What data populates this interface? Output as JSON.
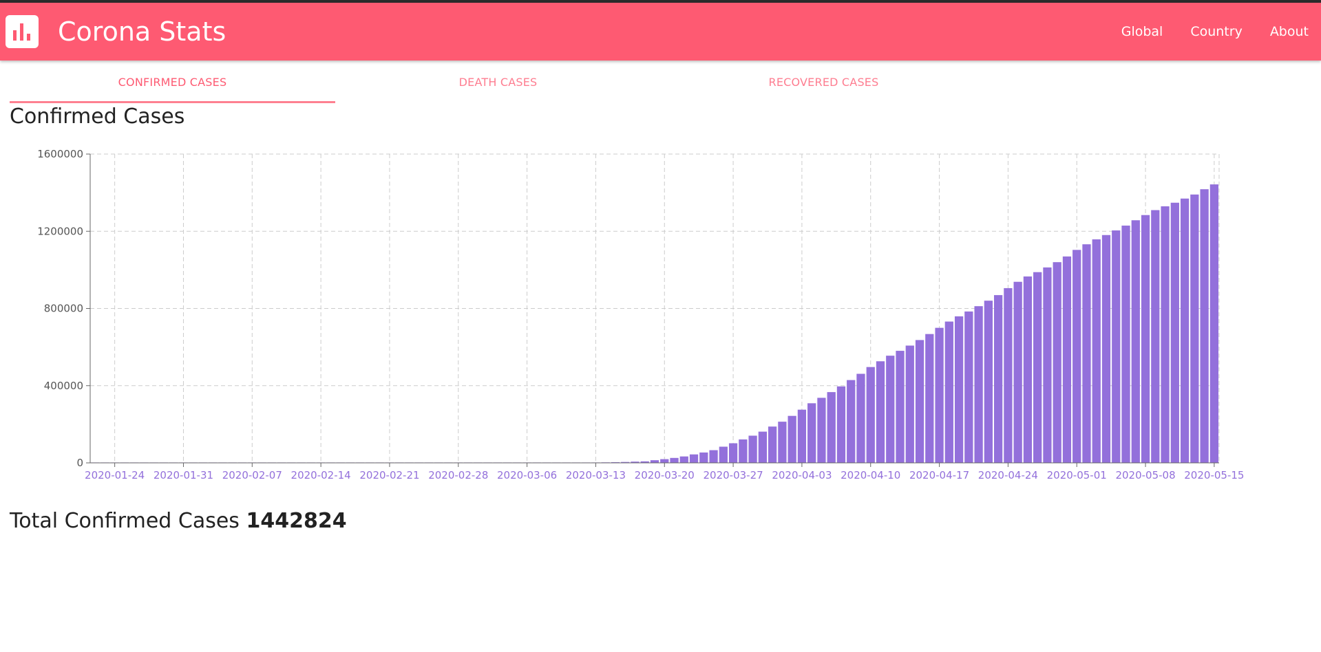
{
  "app": {
    "title": "Corona Stats",
    "logo_icon": "bar-chart-icon"
  },
  "nav": [
    {
      "label": "Global"
    },
    {
      "label": "Country"
    },
    {
      "label": "About"
    }
  ],
  "tabs": [
    {
      "label": "CONFIRMED CASES",
      "active": true
    },
    {
      "label": "DEATH CASES",
      "active": false
    },
    {
      "label": "RECOVERED CASES",
      "active": false
    }
  ],
  "heading": "Confirmed Cases",
  "total": {
    "label": "Total Confirmed Cases",
    "value": "1442824"
  },
  "colors": {
    "appbar": "#fe5a72",
    "tab_active": "#fe5a72",
    "tab_inactive": "#fe7d90",
    "bar": "#9370db",
    "tick_x": "#9370db",
    "grid": "#cccccc"
  },
  "chart_data": {
    "type": "bar",
    "title": "",
    "xlabel": "",
    "ylabel": "",
    "ylim": [
      0,
      1600000
    ],
    "yticks": [
      0,
      400000,
      800000,
      1200000,
      1600000
    ],
    "grid": true,
    "xtick_labels": [
      "2020-01-24",
      "2020-01-31",
      "2020-02-07",
      "2020-02-14",
      "2020-02-21",
      "2020-02-28",
      "2020-03-06",
      "2020-03-13",
      "2020-03-20",
      "2020-03-27",
      "2020-04-03",
      "2020-04-10",
      "2020-04-17",
      "2020-04-24",
      "2020-05-01",
      "2020-05-08",
      "2020-05-15"
    ],
    "categories": [
      "2020-01-22",
      "2020-01-23",
      "2020-01-24",
      "2020-01-25",
      "2020-01-26",
      "2020-01-27",
      "2020-01-28",
      "2020-01-29",
      "2020-01-30",
      "2020-01-31",
      "2020-02-01",
      "2020-02-02",
      "2020-02-03",
      "2020-02-04",
      "2020-02-05",
      "2020-02-06",
      "2020-02-07",
      "2020-02-08",
      "2020-02-09",
      "2020-02-10",
      "2020-02-11",
      "2020-02-12",
      "2020-02-13",
      "2020-02-14",
      "2020-02-15",
      "2020-02-16",
      "2020-02-17",
      "2020-02-18",
      "2020-02-19",
      "2020-02-20",
      "2020-02-21",
      "2020-02-22",
      "2020-02-23",
      "2020-02-24",
      "2020-02-25",
      "2020-02-26",
      "2020-02-27",
      "2020-02-28",
      "2020-02-29",
      "2020-03-01",
      "2020-03-02",
      "2020-03-03",
      "2020-03-04",
      "2020-03-05",
      "2020-03-06",
      "2020-03-07",
      "2020-03-08",
      "2020-03-09",
      "2020-03-10",
      "2020-03-11",
      "2020-03-12",
      "2020-03-13",
      "2020-03-14",
      "2020-03-15",
      "2020-03-16",
      "2020-03-17",
      "2020-03-18",
      "2020-03-19",
      "2020-03-20",
      "2020-03-21",
      "2020-03-22",
      "2020-03-23",
      "2020-03-24",
      "2020-03-25",
      "2020-03-26",
      "2020-03-27",
      "2020-03-28",
      "2020-03-29",
      "2020-03-30",
      "2020-03-31",
      "2020-04-01",
      "2020-04-02",
      "2020-04-03",
      "2020-04-04",
      "2020-04-05",
      "2020-04-06",
      "2020-04-07",
      "2020-04-08",
      "2020-04-09",
      "2020-04-10",
      "2020-04-11",
      "2020-04-12",
      "2020-04-13",
      "2020-04-14",
      "2020-04-15",
      "2020-04-16",
      "2020-04-17",
      "2020-04-18",
      "2020-04-19",
      "2020-04-20",
      "2020-04-21",
      "2020-04-22",
      "2020-04-23",
      "2020-04-24",
      "2020-04-25",
      "2020-04-26",
      "2020-04-27",
      "2020-04-28",
      "2020-04-29",
      "2020-04-30",
      "2020-05-01",
      "2020-05-02",
      "2020-05-03",
      "2020-05-04",
      "2020-05-05",
      "2020-05-06",
      "2020-05-07",
      "2020-05-08",
      "2020-05-09",
      "2020-05-10",
      "2020-05-11",
      "2020-05-12",
      "2020-05-13",
      "2020-05-14",
      "2020-05-15"
    ],
    "values": [
      1,
      1,
      2,
      2,
      5,
      5,
      5,
      5,
      5,
      6,
      8,
      8,
      11,
      11,
      11,
      12,
      12,
      12,
      12,
      12,
      13,
      13,
      15,
      15,
      15,
      15,
      15,
      15,
      15,
      15,
      15,
      15,
      15,
      51,
      51,
      57,
      58,
      60,
      68,
      74,
      98,
      118,
      149,
      217,
      262,
      402,
      518,
      583,
      959,
      1281,
      1663,
      2179,
      2726,
      3499,
      4632,
      6421,
      7783,
      13747,
      19273,
      25600,
      33276,
      43847,
      53740,
      65778,
      83836,
      101657,
      121465,
      140909,
      161831,
      188172,
      213372,
      243453,
      275586,
      308850,
      337072,
      366667,
      396223,
      429052,
      461437,
      496535,
      526396,
      555313,
      580619,
      607670,
      636350,
      667592,
      699706,
      732197,
      759086,
      784326,
      811865,
      840351,
      869170,
      905358,
      938154,
      965785,
      988197,
      1012582,
      1039909,
      1069424,
      1103461,
      1132539,
      1158040,
      1180375,
      1204351,
      1229331,
      1257023,
      1283929,
      1309550,
      1329260,
      1347881,
      1369376,
      1390406,
      1417774,
      1442824
    ],
    "series": [
      {
        "name": "",
        "color": "#9370db"
      }
    ]
  }
}
